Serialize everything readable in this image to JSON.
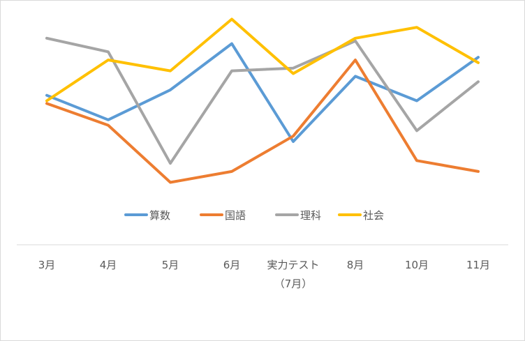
{
  "chart_data": {
    "type": "line",
    "categories": [
      "3月",
      "4月",
      "5月",
      "6月",
      "実力テスト\n（7月）",
      "8月",
      "10月",
      "11月"
    ],
    "series": [
      {
        "name": "算数",
        "color": "#5b9bd5",
        "values": [
          67,
          58,
          69,
          86,
          50,
          74,
          65,
          81
        ]
      },
      {
        "name": "国語",
        "color": "#ed7d31",
        "values": [
          64,
          56,
          35,
          39,
          52,
          80,
          43,
          39
        ]
      },
      {
        "name": "理科",
        "color": "#a5a5a5",
        "values": [
          88,
          83,
          42,
          76,
          77,
          87,
          54,
          72
        ]
      },
      {
        "name": "社会",
        "color": "#ffc000",
        "values": [
          65,
          80,
          76,
          95,
          75,
          88,
          92,
          79
        ]
      }
    ],
    "legend_position": "bottom",
    "grid": false
  }
}
